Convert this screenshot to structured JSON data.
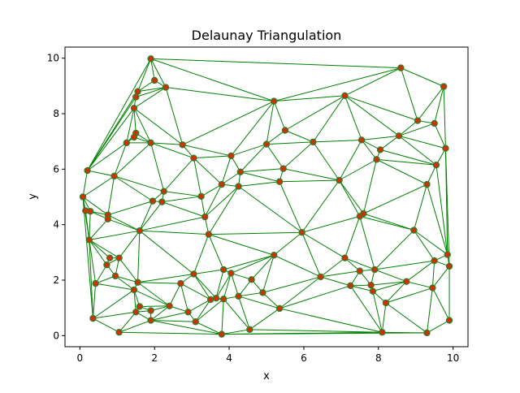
{
  "chart_data": {
    "type": "scatter",
    "title": "Delaunay Triangulation",
    "xlabel": "x",
    "ylabel": "y",
    "xlim": [
      -0.4,
      10.4
    ],
    "ylim": [
      -0.4,
      10.4
    ],
    "x_ticks": [
      "0",
      "2",
      "4",
      "6",
      "8",
      "10"
    ],
    "y_ticks": [
      "0",
      "2",
      "4",
      "6",
      "8",
      "10"
    ],
    "grid": false,
    "legend": "none",
    "colors": {
      "edge": "#008000",
      "point_fill": "#cc3300",
      "point_edge": "#2e7d32"
    },
    "points": [
      [
        1.9,
        9.98
      ],
      [
        8.6,
        9.65
      ],
      [
        2.0,
        9.2
      ],
      [
        2.3,
        8.95
      ],
      [
        9.75,
        8.98
      ],
      [
        1.55,
        8.8
      ],
      [
        1.5,
        8.6
      ],
      [
        5.2,
        8.45
      ],
      [
        7.1,
        8.65
      ],
      [
        1.45,
        8.2
      ],
      [
        9.05,
        7.75
      ],
      [
        9.5,
        7.65
      ],
      [
        5.5,
        7.4
      ],
      [
        8.55,
        7.2
      ],
      [
        1.5,
        7.3
      ],
      [
        1.45,
        7.15
      ],
      [
        1.25,
        6.95
      ],
      [
        1.9,
        6.95
      ],
      [
        2.75,
        6.88
      ],
      [
        5.0,
        6.9
      ],
      [
        6.25,
        6.98
      ],
      [
        7.55,
        7.05
      ],
      [
        8.05,
        6.7
      ],
      [
        9.8,
        6.75
      ],
      [
        3.05,
        6.4
      ],
      [
        4.05,
        6.48
      ],
      [
        7.95,
        6.35
      ],
      [
        0.2,
        5.95
      ],
      [
        9.55,
        6.15
      ],
      [
        4.3,
        5.9
      ],
      [
        5.45,
        6.02
      ],
      [
        0.92,
        5.75
      ],
      [
        5.35,
        5.55
      ],
      [
        6.95,
        5.6
      ],
      [
        3.8,
        5.45
      ],
      [
        4.25,
        5.38
      ],
      [
        9.3,
        5.45
      ],
      [
        2.25,
        5.2
      ],
      [
        3.25,
        5.02
      ],
      [
        0.08,
        5.0
      ],
      [
        1.95,
        4.85
      ],
      [
        2.2,
        4.82
      ],
      [
        0.15,
        4.5
      ],
      [
        0.28,
        4.48
      ],
      [
        0.75,
        4.35
      ],
      [
        0.75,
        4.2
      ],
      [
        7.5,
        4.3
      ],
      [
        7.6,
        4.4
      ],
      [
        3.35,
        4.28
      ],
      [
        1.6,
        3.78
      ],
      [
        5.95,
        3.72
      ],
      [
        8.95,
        3.8
      ],
      [
        3.45,
        3.65
      ],
      [
        0.25,
        3.45
      ],
      [
        0.8,
        2.8
      ],
      [
        1.05,
        2.8
      ],
      [
        0.72,
        2.55
      ],
      [
        5.2,
        2.9
      ],
      [
        7.1,
        2.8
      ],
      [
        9.5,
        2.7
      ],
      [
        9.85,
        2.92
      ],
      [
        9.9,
        2.5
      ],
      [
        3.85,
        2.38
      ],
      [
        4.05,
        2.25
      ],
      [
        7.5,
        2.33
      ],
      [
        7.9,
        2.38
      ],
      [
        3.05,
        2.22
      ],
      [
        0.95,
        2.15
      ],
      [
        6.45,
        2.12
      ],
      [
        4.6,
        2.02
      ],
      [
        8.75,
        1.95
      ],
      [
        0.42,
        1.88
      ],
      [
        1.55,
        1.92
      ],
      [
        2.7,
        1.88
      ],
      [
        7.25,
        1.8
      ],
      [
        7.8,
        1.82
      ],
      [
        7.85,
        1.6
      ],
      [
        1.45,
        1.65
      ],
      [
        4.9,
        1.55
      ],
      [
        9.45,
        1.72
      ],
      [
        3.5,
        1.3
      ],
      [
        3.65,
        1.35
      ],
      [
        3.85,
        1.32
      ],
      [
        4.25,
        1.42
      ],
      [
        8.2,
        1.18
      ],
      [
        2.4,
        1.07
      ],
      [
        1.6,
        1.05
      ],
      [
        5.35,
        0.98
      ],
      [
        1.5,
        0.85
      ],
      [
        1.9,
        0.9
      ],
      [
        2.9,
        0.85
      ],
      [
        0.35,
        0.62
      ],
      [
        3.1,
        0.5
      ],
      [
        1.9,
        0.55
      ],
      [
        4.55,
        0.22
      ],
      [
        1.05,
        0.12
      ],
      [
        3.8,
        0.05
      ],
      [
        8.1,
        0.12
      ],
      [
        9.3,
        0.1
      ],
      [
        9.9,
        0.55
      ]
    ]
  }
}
